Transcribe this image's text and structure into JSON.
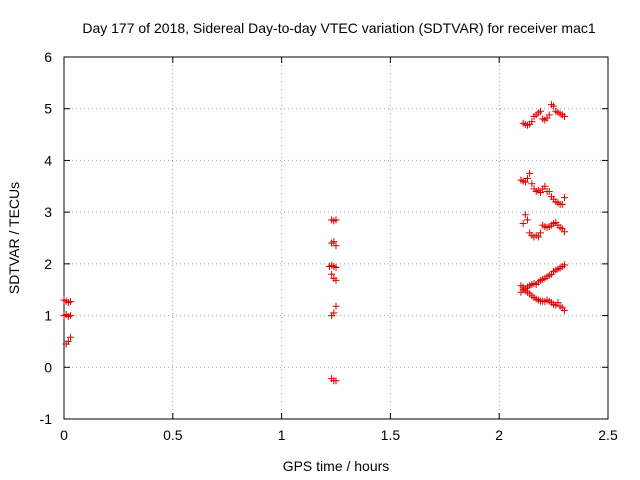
{
  "chart_data": {
    "type": "scatter",
    "title": "Day 177 of 2018, Sidereal Day-to-day VTEC variation (SDTVAR) for receiver mac1",
    "xlabel": "GPS time / hours",
    "ylabel": "SDTVAR / TECUs",
    "xlim": [
      0,
      2.5
    ],
    "ylim": [
      -1,
      6
    ],
    "xticks": [
      "0",
      "0.5",
      "1",
      "1.5",
      "2",
      "2.5"
    ],
    "yticks": [
      "-1",
      "0",
      "1",
      "2",
      "3",
      "4",
      "5",
      "6"
    ],
    "grid": true,
    "legend": "none",
    "marker": "+",
    "color": "#dd0000",
    "points": [
      [
        0.0,
        1.3
      ],
      [
        0.01,
        1.28
      ],
      [
        0.02,
        1.25
      ],
      [
        0.03,
        1.27
      ],
      [
        0.0,
        1.0
      ],
      [
        0.01,
        1.02
      ],
      [
        0.02,
        0.98
      ],
      [
        0.03,
        1.0
      ],
      [
        0.01,
        0.45
      ],
      [
        0.02,
        0.5
      ],
      [
        0.03,
        0.58
      ],
      [
        1.23,
        2.85
      ],
      [
        1.24,
        2.83
      ],
      [
        1.25,
        2.85
      ],
      [
        1.23,
        2.4
      ],
      [
        1.24,
        2.43
      ],
      [
        1.25,
        2.35
      ],
      [
        1.22,
        1.95
      ],
      [
        1.23,
        1.97
      ],
      [
        1.24,
        1.95
      ],
      [
        1.25,
        1.93
      ],
      [
        1.23,
        1.8
      ],
      [
        1.24,
        1.72
      ],
      [
        1.25,
        1.68
      ],
      [
        1.23,
        1.0
      ],
      [
        1.24,
        1.05
      ],
      [
        1.25,
        1.18
      ],
      [
        1.23,
        -0.22
      ],
      [
        1.24,
        -0.26
      ],
      [
        1.25,
        -0.26
      ],
      [
        2.11,
        4.72
      ],
      [
        2.12,
        4.7
      ],
      [
        2.13,
        4.68
      ],
      [
        2.14,
        4.7
      ],
      [
        2.15,
        4.75
      ],
      [
        2.16,
        4.85
      ],
      [
        2.17,
        4.88
      ],
      [
        2.18,
        4.92
      ],
      [
        2.19,
        4.95
      ],
      [
        2.2,
        4.8
      ],
      [
        2.21,
        4.78
      ],
      [
        2.22,
        4.82
      ],
      [
        2.23,
        4.88
      ],
      [
        2.24,
        5.08
      ],
      [
        2.25,
        5.05
      ],
      [
        2.26,
        4.95
      ],
      [
        2.27,
        4.93
      ],
      [
        2.28,
        4.9
      ],
      [
        2.29,
        4.88
      ],
      [
        2.3,
        4.85
      ],
      [
        2.1,
        3.62
      ],
      [
        2.11,
        3.6
      ],
      [
        2.12,
        3.58
      ],
      [
        2.13,
        3.65
      ],
      [
        2.14,
        3.75
      ],
      [
        2.15,
        3.55
      ],
      [
        2.16,
        3.45
      ],
      [
        2.17,
        3.4
      ],
      [
        2.18,
        3.42
      ],
      [
        2.19,
        3.38
      ],
      [
        2.2,
        3.45
      ],
      [
        2.21,
        3.5
      ],
      [
        2.22,
        3.4
      ],
      [
        2.23,
        3.4
      ],
      [
        2.24,
        3.3
      ],
      [
        2.25,
        3.25
      ],
      [
        2.26,
        3.2
      ],
      [
        2.27,
        3.18
      ],
      [
        2.28,
        3.15
      ],
      [
        2.29,
        3.15
      ],
      [
        2.3,
        3.28
      ],
      [
        2.11,
        2.78
      ],
      [
        2.12,
        2.95
      ],
      [
        2.13,
        2.85
      ],
      [
        2.14,
        2.6
      ],
      [
        2.15,
        2.55
      ],
      [
        2.16,
        2.52
      ],
      [
        2.17,
        2.55
      ],
      [
        2.18,
        2.52
      ],
      [
        2.19,
        2.6
      ],
      [
        2.2,
        2.75
      ],
      [
        2.21,
        2.72
      ],
      [
        2.22,
        2.7
      ],
      [
        2.23,
        2.72
      ],
      [
        2.24,
        2.75
      ],
      [
        2.25,
        2.78
      ],
      [
        2.26,
        2.8
      ],
      [
        2.27,
        2.75
      ],
      [
        2.28,
        2.7
      ],
      [
        2.29,
        2.68
      ],
      [
        2.3,
        2.62
      ],
      [
        2.1,
        1.58
      ],
      [
        2.11,
        1.55
      ],
      [
        2.12,
        1.52
      ],
      [
        2.13,
        1.55
      ],
      [
        2.14,
        1.58
      ],
      [
        2.15,
        1.6
      ],
      [
        2.16,
        1.62
      ],
      [
        2.17,
        1.6
      ],
      [
        2.18,
        1.65
      ],
      [
        2.19,
        1.68
      ],
      [
        2.2,
        1.7
      ],
      [
        2.21,
        1.72
      ],
      [
        2.22,
        1.75
      ],
      [
        2.23,
        1.78
      ],
      [
        2.24,
        1.8
      ],
      [
        2.25,
        1.85
      ],
      [
        2.26,
        1.88
      ],
      [
        2.27,
        1.9
      ],
      [
        2.28,
        1.92
      ],
      [
        2.29,
        1.95
      ],
      [
        2.3,
        1.98
      ],
      [
        2.1,
        1.45
      ],
      [
        2.11,
        1.5
      ],
      [
        2.12,
        1.48
      ],
      [
        2.13,
        1.45
      ],
      [
        2.14,
        1.42
      ],
      [
        2.15,
        1.38
      ],
      [
        2.16,
        1.35
      ],
      [
        2.17,
        1.32
      ],
      [
        2.18,
        1.3
      ],
      [
        2.19,
        1.28
      ],
      [
        2.2,
        1.28
      ],
      [
        2.21,
        1.27
      ],
      [
        2.22,
        1.3
      ],
      [
        2.23,
        1.28
      ],
      [
        2.24,
        1.25
      ],
      [
        2.25,
        1.22
      ],
      [
        2.26,
        1.2
      ],
      [
        2.27,
        1.25
      ],
      [
        2.28,
        1.18
      ],
      [
        2.29,
        1.15
      ],
      [
        2.3,
        1.1
      ]
    ]
  }
}
